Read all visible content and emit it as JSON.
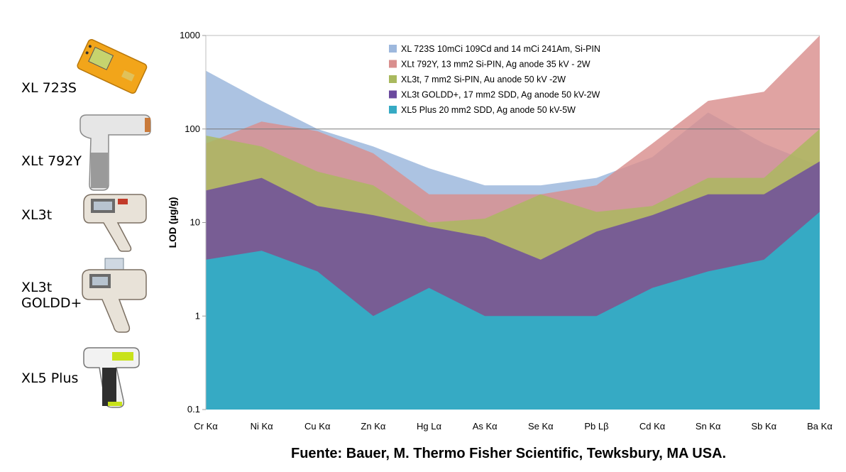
{
  "devices": [
    {
      "label": "XL 723S"
    },
    {
      "label": "XLt 792Y"
    },
    {
      "label": "XL3t"
    },
    {
      "label": "XL3t\nGOLDD+"
    },
    {
      "label": "XL5 Plus"
    }
  ],
  "source": "Fuente: Bauer, M. Thermo Fisher Scientific, Tewksbury, MA USA.",
  "colors": {
    "xl723s": "#9db8dd",
    "xlt792y": "#d98f8e",
    "xl3t": "#a9b95e",
    "xl3t_goldd": "#6b4a9e",
    "xl5plus": "#36aac4"
  },
  "chart_data": {
    "type": "area",
    "title": "",
    "xlabel": "",
    "ylabel": "LOD (µg/g)",
    "yscale": "log",
    "ylim": [
      0.1,
      1000
    ],
    "yticks": [
      "0.1",
      "1",
      "10",
      "100",
      "1000"
    ],
    "grid": "horizontal line at 100",
    "legend_position": "top-center",
    "categories": [
      "Cr Kα",
      "Ni Kα",
      "Cu Kα",
      "Zn Kα",
      "Hg Lα",
      "As Kα",
      "Se Kα",
      "Pb Lβ",
      "Cd Kα",
      "Sn Kα",
      "Sb Kα",
      "Ba Kα"
    ],
    "series": [
      {
        "name": "XL 723S 10mCi 109Cd and 14 mCi 241Am, Si-PIN",
        "color_key": "xl723s",
        "values": [
          420,
          200,
          100,
          65,
          38,
          25,
          25,
          30,
          50,
          150,
          70,
          40
        ]
      },
      {
        "name": "XLt 792Y, 13 mm2 Si-PIN, Ag anode 35 kV - 2W",
        "color_key": "xlt792y",
        "values": [
          70,
          120,
          95,
          55,
          20,
          20,
          20,
          25,
          70,
          200,
          250,
          1000
        ]
      },
      {
        "name": "XL3t, 7 mm2 Si-PIN, Au anode 50 kV -2W",
        "color_key": "xl3t",
        "values": [
          85,
          65,
          35,
          25,
          10,
          11,
          20,
          13,
          15,
          30,
          30,
          100
        ]
      },
      {
        "name": "XL3t GOLDD+, 17 mm2 SDD, Ag anode 50 kV-2W",
        "color_key": "xl3t_goldd",
        "values": [
          22,
          30,
          15,
          12,
          9,
          7,
          4,
          8,
          12,
          20,
          20,
          45
        ]
      },
      {
        "name": "XL5 Plus 20 mm2 SDD, Ag anode 50 kV-5W",
        "color_key": "xl5plus",
        "values": [
          4,
          5,
          3,
          1,
          2,
          1,
          1,
          1,
          2,
          3,
          4,
          13
        ]
      }
    ]
  }
}
